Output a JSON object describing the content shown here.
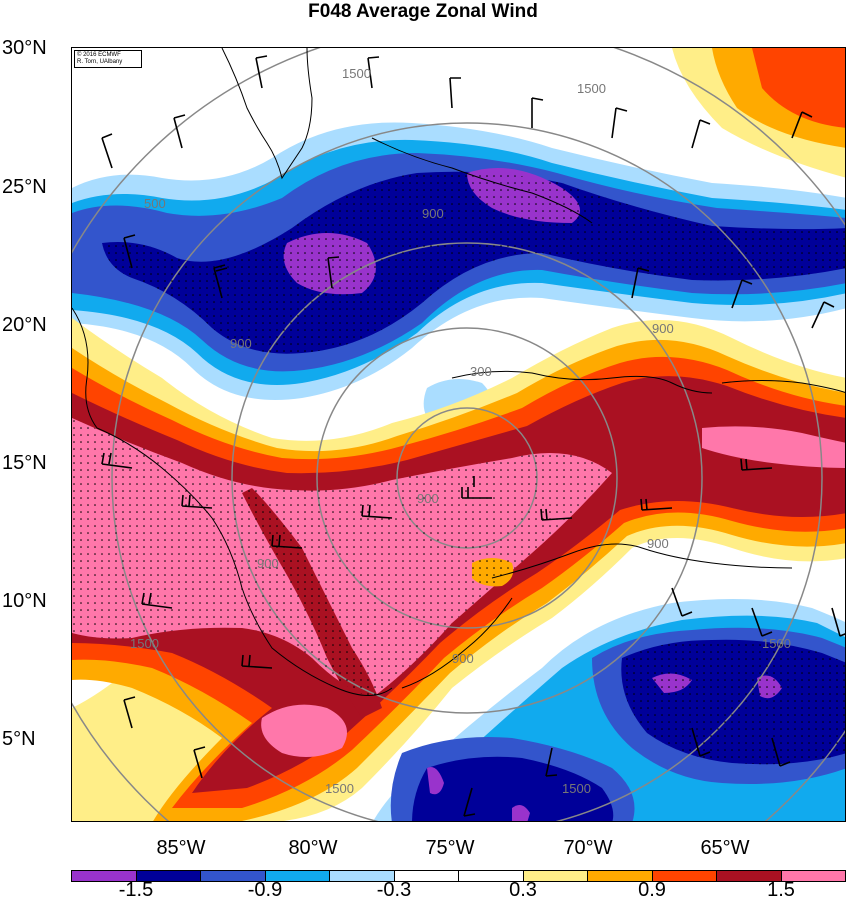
{
  "title": "F048 Average Zonal Wind",
  "credit": {
    "line1": "© 2016 ECMWF",
    "line2": "R. Torn, UAlbany"
  },
  "lat_labels": [
    "30°N",
    "25°N",
    "20°N",
    "15°N",
    "10°N",
    "5°N"
  ],
  "lon_labels": [
    "85°W",
    "80°W",
    "75°W",
    "70°W",
    "65°W"
  ],
  "contour_labels": [
    "1500",
    "1500",
    "500",
    "900",
    "900",
    "900",
    "900",
    "300",
    "900",
    "900",
    "900",
    "1500",
    "1500",
    "1500",
    "1500"
  ],
  "colorbar": {
    "colors": [
      "#9933cc",
      "#000099",
      "#3355cc",
      "#11aaee",
      "#aaddff",
      "#ffffff",
      "#ffffff",
      "#ffee88",
      "#ffaa00",
      "#ff4400",
      "#aa1122",
      "#ff77aa"
    ],
    "labels": [
      "-1.5",
      "-0.9",
      "-0.3",
      "0.3",
      "0.9",
      "1.5"
    ]
  }
}
